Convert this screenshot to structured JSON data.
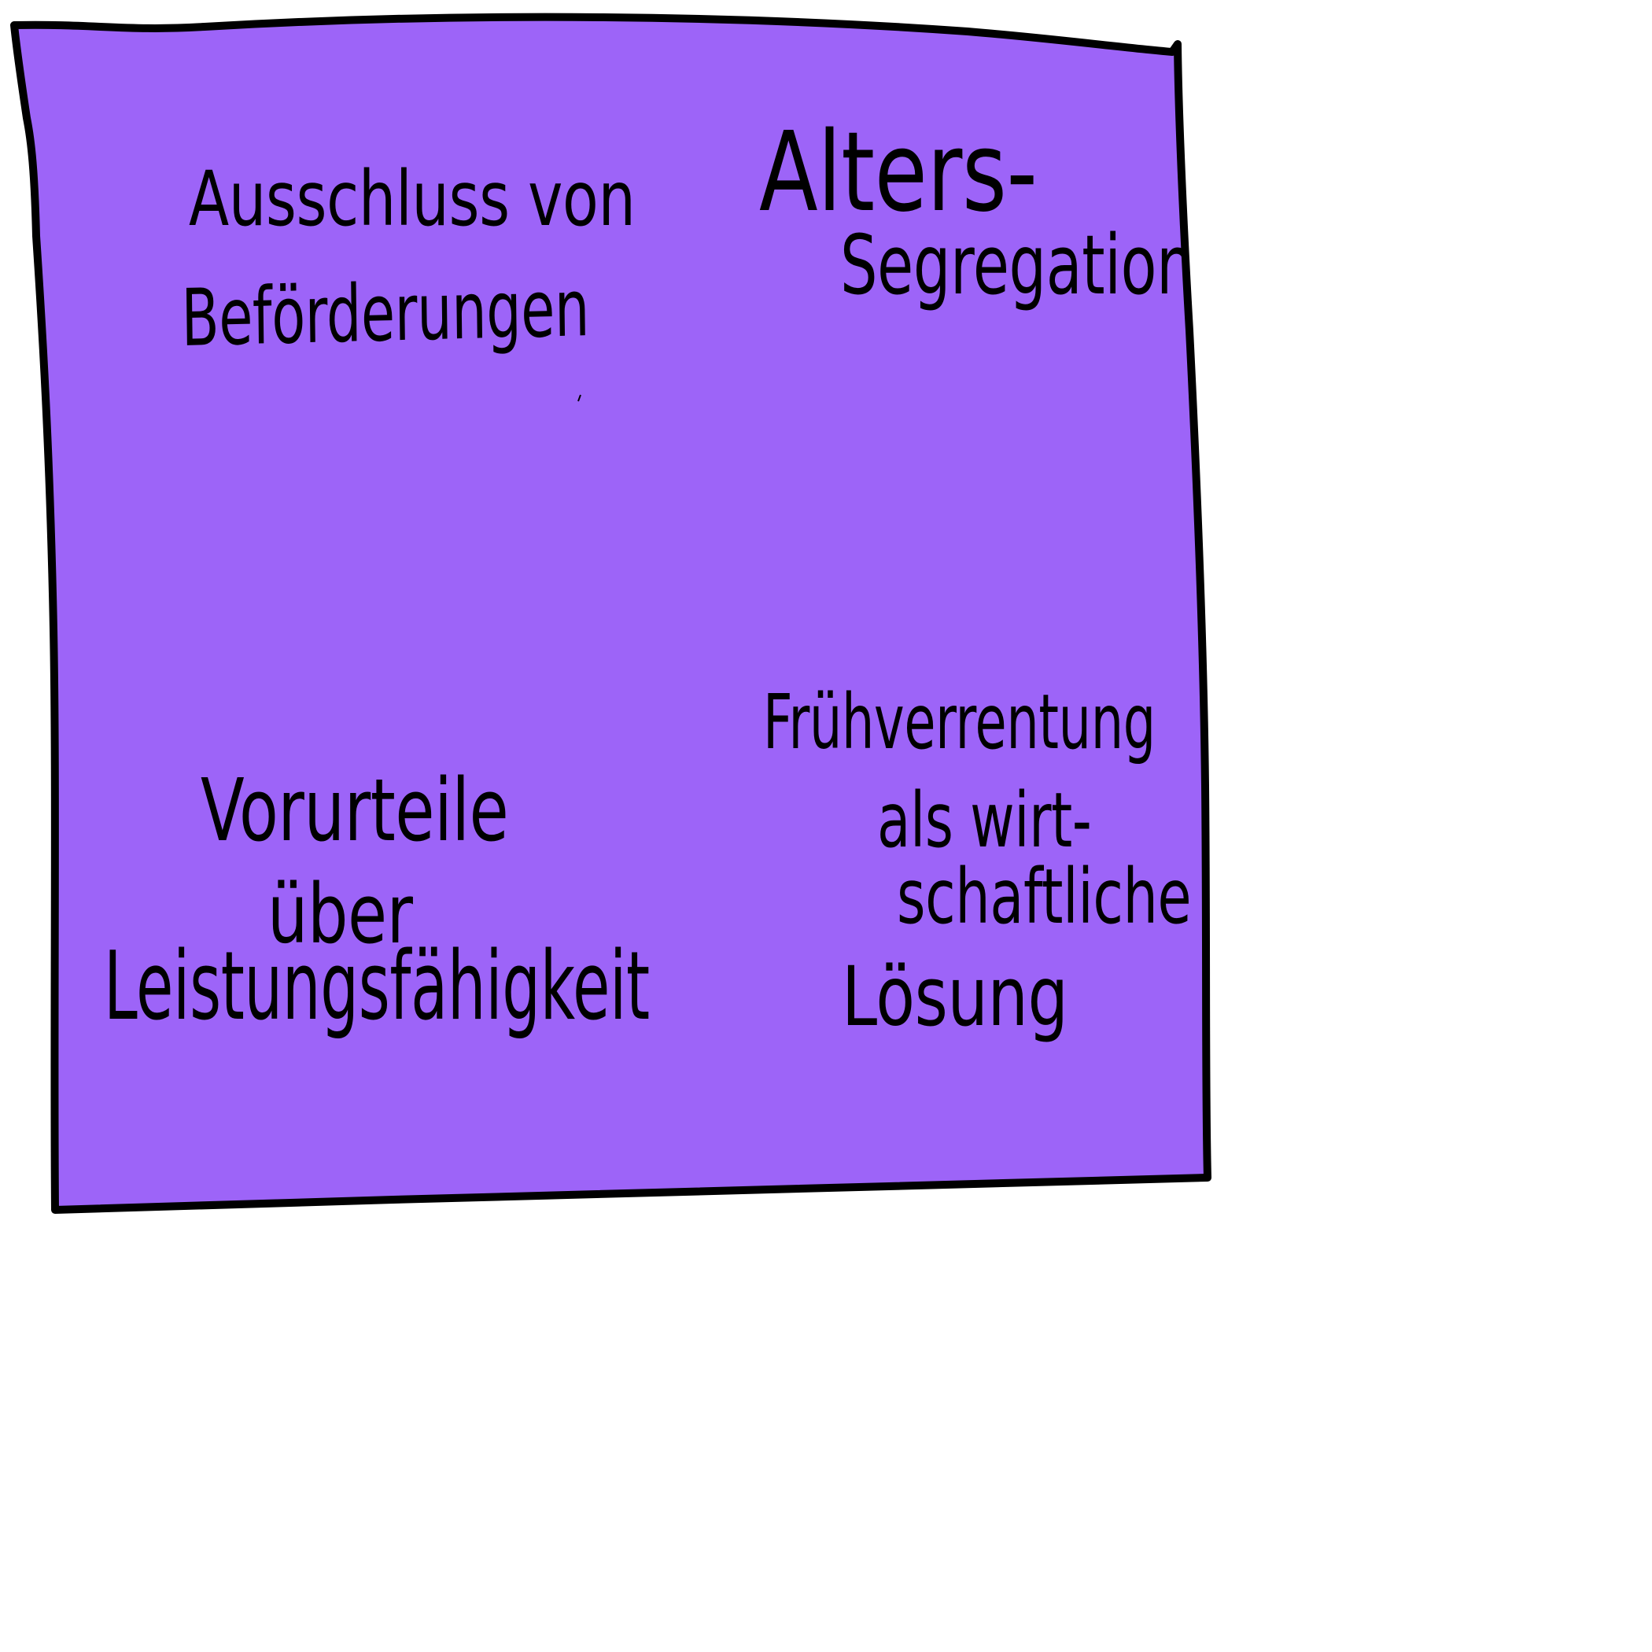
{
  "colors": {
    "card_fill": "#9d64f8",
    "outline": "#000000",
    "text": "#000000",
    "background": "#ffffff"
  },
  "card": {
    "top_left": {
      "line1": "Ausschluss von",
      "line2": "Beförderungen"
    },
    "top_right": {
      "line1": "Alters-",
      "line2": "Segregation"
    },
    "bottom_right": {
      "line1": "Frühverrentung",
      "line2": "als wirt-",
      "line3": "schaftliche",
      "line4": "Lösung"
    },
    "bottom_left": {
      "line1": "Vorurteile",
      "line2": "über",
      "line3": "Leistungsfähigkeit"
    }
  }
}
